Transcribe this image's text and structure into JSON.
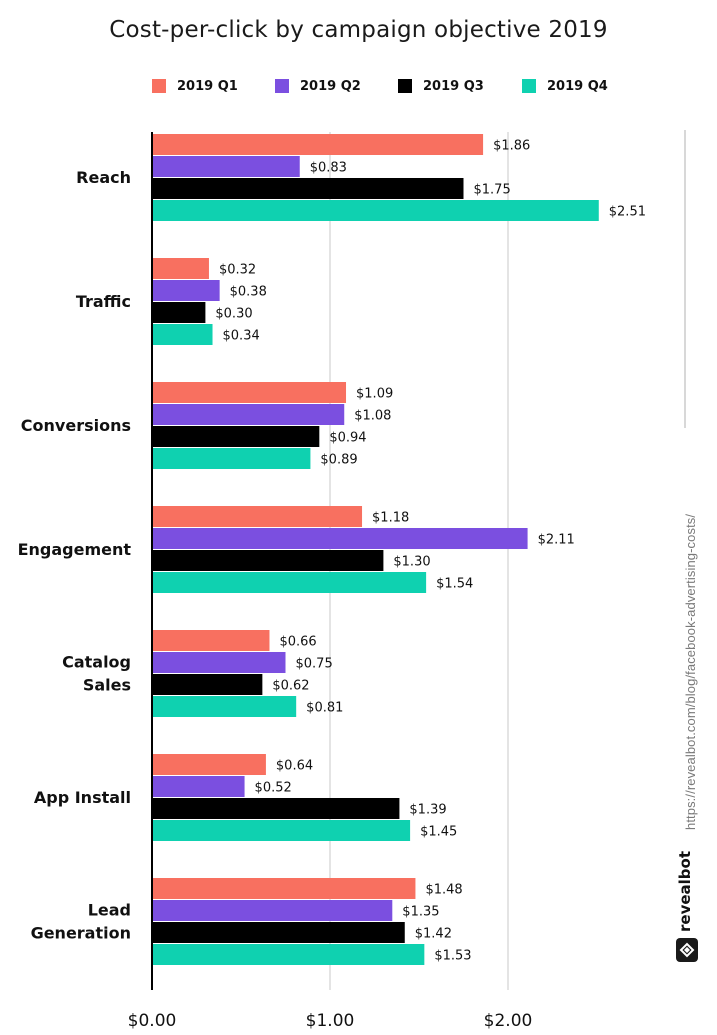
{
  "chart_data": {
    "type": "bar",
    "orientation": "horizontal",
    "title": "Cost-per-click by campaign objective 2019",
    "categories": [
      "Reach",
      "Traffic",
      "Conversions",
      "Engagement",
      "Catalog Sales",
      "App Install",
      "Lead Generation"
    ],
    "series": [
      {
        "name": "2019 Q1",
        "color": "#f87060",
        "values": [
          1.86,
          0.32,
          1.09,
          1.18,
          0.66,
          0.64,
          1.48
        ],
        "labels": [
          "$1.86",
          "$0.32",
          "$1.09",
          "$1.18",
          "$0.66",
          "$0.64",
          "$1.48"
        ]
      },
      {
        "name": "2019 Q2",
        "color": "#7b4fe0",
        "values": [
          0.83,
          0.38,
          1.08,
          2.11,
          0.75,
          0.52,
          1.35
        ],
        "labels": [
          "$0.83",
          "$0.38",
          "$1.08",
          "$2.11",
          "$0.75",
          "$0.52",
          "$1.35"
        ]
      },
      {
        "name": "2019 Q3",
        "color": "#000000",
        "values": [
          1.75,
          0.3,
          0.94,
          1.3,
          0.62,
          1.39,
          1.42
        ],
        "labels": [
          "$1.75",
          "$0.30",
          "$0.94",
          "$1.30",
          "$0.62",
          "$1.39",
          "$1.42"
        ]
      },
      {
        "name": "2019 Q4",
        "color": "#0fd1b0",
        "values": [
          2.51,
          0.34,
          0.89,
          1.54,
          0.81,
          1.45,
          1.53
        ],
        "labels": [
          "$2.51",
          "$0.34",
          "$0.89",
          "$1.54",
          "$0.81",
          "$1.45",
          "$1.53"
        ]
      }
    ],
    "xticks": [
      0,
      1,
      2
    ],
    "xtick_labels": [
      "$0.00",
      "$1.00",
      "$2.00"
    ],
    "xlim": [
      0,
      2.6
    ],
    "grid": true,
    "legend_position": "top"
  },
  "source_url": "https://revealbot.com/blog/facebook-advertising-costs/",
  "brand": "revealbot"
}
